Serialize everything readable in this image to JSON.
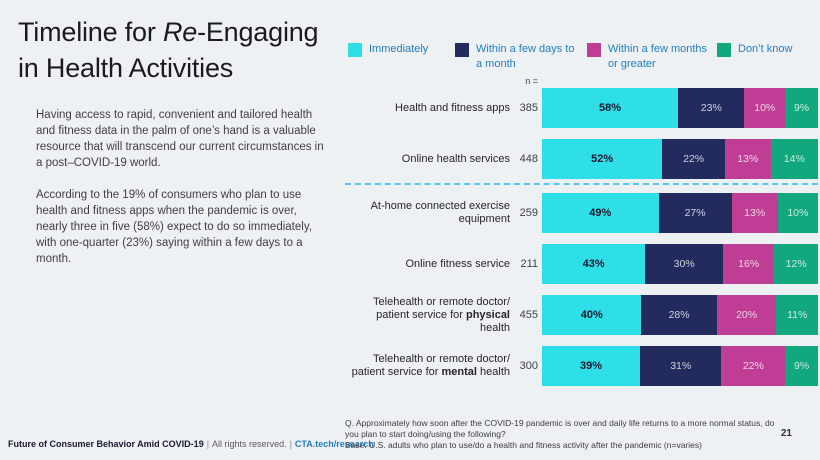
{
  "slide": {
    "title": {
      "pre": "Timeline for ",
      "italic": "Re",
      "post": "-Engaging",
      "line2": "in Health Activities"
    },
    "paragraphs": [
      "Having access to rapid, convenient and tailored health and fitness data in the palm of one’s hand is a valuable resource that will transcend our current circumstances in a post–COVID-19 world.",
      "According to the 19% of consumers who plan to use health and fitness apps when the pandemic is over, nearly three in five (58%) expect to do so immediately, with one-quarter (23%) saying within a few days to a month."
    ],
    "footer": {
      "title": "Future of Consumer Behavior Amid COVID-19",
      "divider": "|",
      "rights": "All rights reserved.",
      "link": "CTA.tech/research"
    },
    "page_number": "21"
  },
  "legend": [
    {
      "label": "Immediately",
      "color": "#2fdfe8"
    },
    {
      "label": "Within a few days to a month",
      "color": "#232a5e"
    },
    {
      "label": "Within a few months or greater",
      "color": "#c03d96"
    },
    {
      "label": "Don’t know",
      "color": "#10a87c"
    }
  ],
  "chart_data": {
    "type": "bar",
    "orientation": "horizontal",
    "stacked": true,
    "value_unit": "%",
    "xlim": [
      0,
      100
    ],
    "grid": false,
    "legend_position": "top",
    "n_header": "n =",
    "series_names": [
      "Immediately",
      "Within a few days to a month",
      "Within a few months or greater",
      "Don’t know"
    ],
    "colors": [
      "#2fdfe8",
      "#232a5e",
      "#c03d96",
      "#10a87c"
    ],
    "divider_after_row": 2,
    "divider_color": "#56c7f0",
    "rows": [
      {
        "label_lines": [
          [
            {
              "t": "Health and fitness apps"
            }
          ]
        ],
        "n": "385",
        "values": [
          58,
          23,
          10,
          9
        ]
      },
      {
        "label_lines": [
          [
            {
              "t": "Online health services"
            }
          ]
        ],
        "n": "448",
        "values": [
          52,
          22,
          13,
          14
        ]
      },
      {
        "label_lines": [
          [
            {
              "t": "At-home connected exercise"
            }
          ],
          [
            {
              "t": "equipment"
            }
          ]
        ],
        "n": "259",
        "values": [
          49,
          27,
          13,
          10
        ]
      },
      {
        "label_lines": [
          [
            {
              "t": "Online fitness service"
            }
          ]
        ],
        "n": "211",
        "values": [
          43,
          30,
          16,
          12
        ]
      },
      {
        "label_lines": [
          [
            {
              "t": "Telehealth or remote doctor/"
            }
          ],
          [
            {
              "t": "patient service for "
            },
            {
              "t": "physical",
              "b": true
            },
            {
              "t": " health"
            }
          ]
        ],
        "n": "455",
        "values": [
          40,
          28,
          20,
          11
        ]
      },
      {
        "label_lines": [
          [
            {
              "t": "Telehealth or remote doctor/"
            }
          ],
          [
            {
              "t": "patient service for "
            },
            {
              "t": "mental",
              "b": true
            },
            {
              "t": " health"
            }
          ]
        ],
        "n": "300",
        "values": [
          39,
          31,
          22,
          9
        ]
      }
    ]
  },
  "footnote": {
    "lines": [
      "Q. Approximately how soon after the COVID-19 pandemic is over and daily life returns to a more normal status, do you plan to start doing/using the following?",
      "Base: U.S. adults who plan to use/do a health and fitness activity after the pandemic (n=varies)"
    ]
  }
}
